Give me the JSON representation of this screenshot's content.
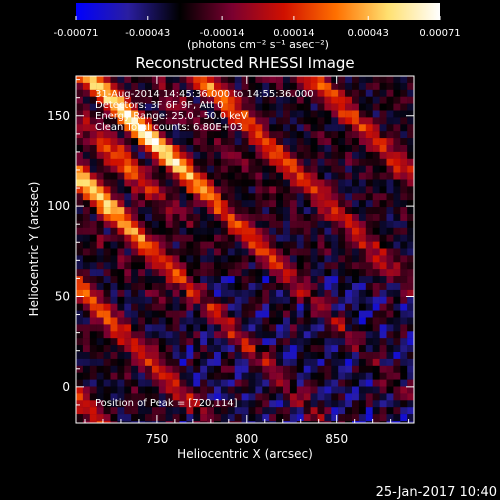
{
  "chart_data": {
    "type": "heatmap",
    "title": "Reconstructed RHESSI Image",
    "xlabel": "Heliocentric X (arcsec)",
    "ylabel": "Heliocentric Y (arcsec)",
    "xlim": [
      705,
      893
    ],
    "ylim": [
      -20,
      172
    ],
    "xticks": [
      750,
      800,
      850
    ],
    "yticks": [
      0,
      50,
      100,
      150
    ],
    "colorbar": {
      "min": -0.00071,
      "max": 0.00071,
      "tick_values": [
        -0.00071,
        -0.00043,
        -0.00014,
        0.00014,
        0.00043,
        0.00071
      ],
      "tick_labels": [
        "-0.00071",
        "-0.00043",
        "-0.00014",
        "0.00014",
        "0.00043",
        "0.00071"
      ],
      "unit_label": "(photons cm⁻² s⁻¹ asec⁻²)",
      "colormap": [
        "#0000ff",
        "#2a1ea0",
        "#000000",
        "#7a0030",
        "#d01000",
        "#ff7000",
        "#ffe070",
        "#ffffff"
      ]
    },
    "annotations": [
      "31-Aug-2014 14:45:36.000 to 14:55:36.000",
      "Detectors: 3F 6F 9F, Att 0",
      "Energy Range: 25.0 - 50.0 keV",
      "Clean    Total counts: 6.80E+03"
    ],
    "peak_label": "Position of Peak = [720,114]",
    "peak": [
      720,
      114
    ]
  },
  "footer": {
    "datetime": "25-Jan-2017 10:40"
  }
}
